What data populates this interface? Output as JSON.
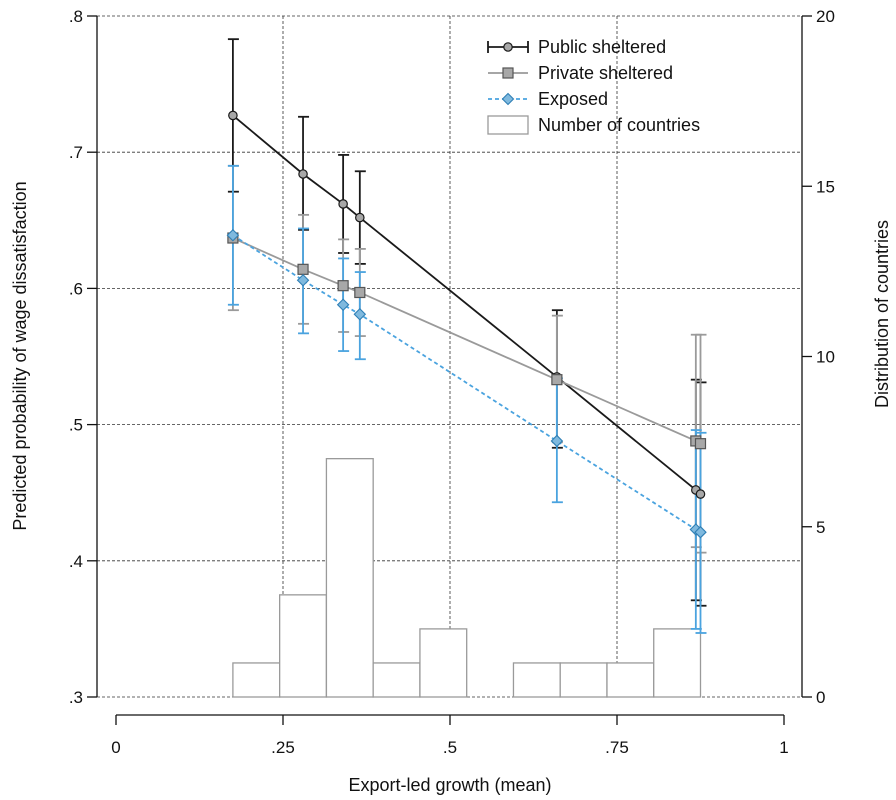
{
  "chart_data": {
    "type": "line",
    "xlabel": "Export-led growth (mean)",
    "ylabel": "Predicted probability of wage dissatisfaction",
    "y2label": "Distribution of countries",
    "xlim": [
      0,
      1
    ],
    "ylim": [
      0.3,
      0.8
    ],
    "y2lim": [
      0,
      20
    ],
    "xticks": [
      0,
      0.25,
      0.5,
      0.75,
      1
    ],
    "xtick_labels": [
      "0",
      ".25",
      ".5",
      ".75",
      "1"
    ],
    "yticks": [
      0.3,
      0.4,
      0.5,
      0.6,
      0.7,
      0.8
    ],
    "ytick_labels": [
      ".3",
      ".4",
      ".5",
      ".6",
      ".7",
      ".8"
    ],
    "y2ticks": [
      0,
      5,
      10,
      15,
      20
    ],
    "y2tick_labels": [
      "0",
      "5",
      "10",
      "15",
      "20"
    ],
    "grid": true,
    "legend_position": "top-right",
    "series": [
      {
        "name": "Public sheltered",
        "color": "#1a1a1a",
        "marker": "circle",
        "dash": false,
        "x": [
          0.175,
          0.28,
          0.34,
          0.365,
          0.66,
          0.868,
          0.875
        ],
        "y": [
          0.727,
          0.684,
          0.662,
          0.652,
          0.535,
          0.452,
          0.449
        ],
        "ci_low": [
          0.671,
          0.643,
          0.626,
          0.618,
          0.483,
          0.371,
          0.367
        ],
        "ci_high": [
          0.783,
          0.726,
          0.698,
          0.686,
          0.584,
          0.533,
          0.531
        ]
      },
      {
        "name": "Private sheltered",
        "color": "#9a9a9a",
        "marker": "square",
        "dash": false,
        "x": [
          0.175,
          0.28,
          0.34,
          0.365,
          0.66,
          0.868,
          0.875
        ],
        "y": [
          0.637,
          0.614,
          0.602,
          0.597,
          0.533,
          0.488,
          0.486
        ],
        "ci_low": [
          0.584,
          0.574,
          0.568,
          0.565,
          0.487,
          0.41,
          0.406
        ],
        "ci_high": [
          0.69,
          0.654,
          0.636,
          0.629,
          0.58,
          0.566,
          0.566
        ]
      },
      {
        "name": "Exposed",
        "color": "#4aa3df",
        "marker": "diamond",
        "dash": true,
        "x": [
          0.175,
          0.28,
          0.34,
          0.365,
          0.66,
          0.868,
          0.875
        ],
        "y": [
          0.639,
          0.606,
          0.588,
          0.581,
          0.488,
          0.423,
          0.421
        ],
        "ci_low": [
          0.588,
          0.567,
          0.554,
          0.548,
          0.443,
          0.35,
          0.347
        ],
        "ci_high": [
          0.69,
          0.644,
          0.622,
          0.612,
          0.534,
          0.496,
          0.494
        ]
      }
    ],
    "histogram": {
      "name": "Number of countries",
      "color": "#9a9a9a",
      "bins": [
        {
          "start": 0.175,
          "end": 0.245,
          "count": 1
        },
        {
          "start": 0.245,
          "end": 0.315,
          "count": 3
        },
        {
          "start": 0.315,
          "end": 0.385,
          "count": 7
        },
        {
          "start": 0.385,
          "end": 0.455,
          "count": 1
        },
        {
          "start": 0.455,
          "end": 0.525,
          "count": 2
        },
        {
          "start": 0.595,
          "end": 0.665,
          "count": 1
        },
        {
          "start": 0.665,
          "end": 0.735,
          "count": 1
        },
        {
          "start": 0.735,
          "end": 0.805,
          "count": 1
        },
        {
          "start": 0.805,
          "end": 0.875,
          "count": 2
        }
      ]
    }
  }
}
